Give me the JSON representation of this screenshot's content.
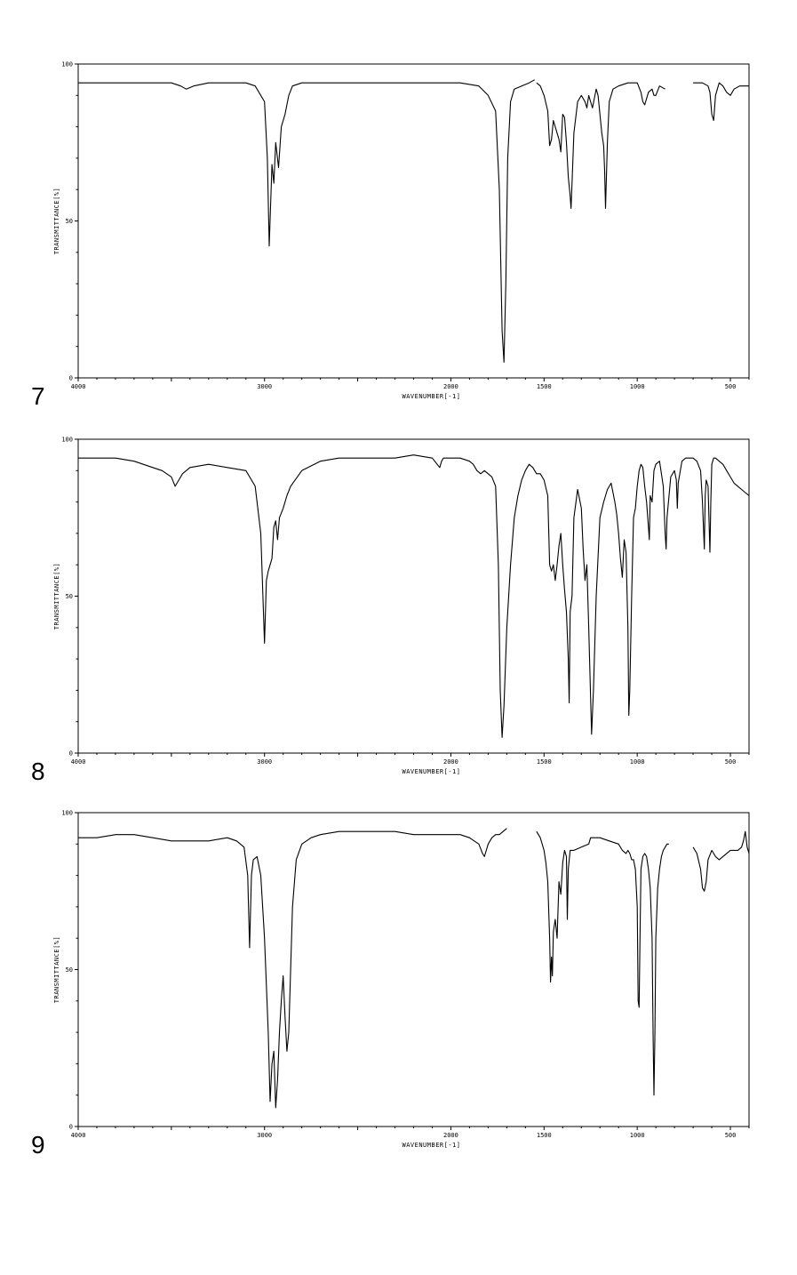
{
  "chart_data": [
    {
      "type": "line",
      "panel_label": "7",
      "xlabel": "WAVENUMBER[-1]",
      "ylabel": "TRANSMITTANCE[%]",
      "xlim": [
        4000,
        400
      ],
      "ylim": [
        0,
        100
      ],
      "x_ticks": [
        "4000",
        "3000",
        "2000",
        "1500",
        "1000",
        "500"
      ],
      "y_ticks": [
        "0",
        "50",
        "100"
      ],
      "segments": [
        {
          "x": [
            4000,
            3500,
            3450,
            3420,
            3380,
            3300,
            3100,
            3050,
            3000,
            2985,
            2975,
            2960,
            2950,
            2940,
            2925,
            2910,
            2890,
            2870,
            2850,
            2800,
            2700,
            2500,
            2300,
            2100,
            1950,
            1850,
            1800,
            1760,
            1740,
            1725,
            1715,
            1705,
            1695,
            1680,
            1660,
            1620,
            1580,
            1550
          ],
          "y": [
            94,
            94,
            93,
            92,
            93,
            94,
            94,
            93,
            88,
            70,
            42,
            68,
            62,
            75,
            67,
            80,
            84,
            90,
            93,
            94,
            94,
            94,
            94,
            94,
            94,
            93,
            90,
            85,
            60,
            15,
            5,
            30,
            70,
            88,
            92,
            93,
            94,
            95
          ]
        },
        {
          "x": [
            1540,
            1520,
            1500,
            1480,
            1470,
            1460,
            1450,
            1440,
            1430,
            1420,
            1410,
            1400,
            1390,
            1380,
            1370,
            1360,
            1355,
            1350,
            1340,
            1320,
            1300,
            1280,
            1270,
            1260,
            1250,
            1240,
            1230,
            1220,
            1210,
            1200,
            1190,
            1180,
            1175,
            1170,
            1160,
            1150,
            1130,
            1100,
            1050,
            1000,
            980,
            970,
            960,
            940,
            920,
            910,
            900,
            880,
            850
          ],
          "y": [
            94,
            93,
            90,
            85,
            74,
            76,
            82,
            80,
            78,
            76,
            72,
            84,
            83,
            75,
            64,
            58,
            54,
            62,
            78,
            88,
            90,
            88,
            86,
            90,
            88,
            86,
            89,
            92,
            90,
            84,
            78,
            74,
            66,
            54,
            75,
            88,
            92,
            93,
            94,
            94,
            91,
            88,
            87,
            91,
            92,
            90,
            90,
            93,
            92
          ]
        },
        {
          "x": [
            700,
            650,
            620,
            610,
            600,
            590,
            580,
            560,
            540,
            520,
            500,
            480,
            450,
            400
          ],
          "y": [
            94,
            94,
            93,
            91,
            84,
            82,
            90,
            94,
            93,
            91,
            90,
            92,
            93,
            93
          ]
        }
      ]
    },
    {
      "type": "line",
      "panel_label": "8",
      "xlabel": "WAVENUMBER[-1]",
      "ylabel": "TRANSMITTANCE[%]",
      "xlim": [
        4000,
        400
      ],
      "ylim": [
        0,
        100
      ],
      "x_ticks": [
        "4000",
        "3000",
        "2000",
        "1500",
        "1000",
        "500"
      ],
      "y_ticks": [
        "0",
        "50",
        "100"
      ],
      "segments": [
        {
          "x": [
            4000,
            3800,
            3700,
            3600,
            3550,
            3500,
            3480,
            3460,
            3440,
            3400,
            3300,
            3200,
            3100,
            3050,
            3020,
            3000,
            2990,
            2980,
            2970,
            2960,
            2950,
            2940,
            2930,
            2920,
            2900,
            2880,
            2860,
            2800,
            2700,
            2600,
            2500,
            2400,
            2300,
            2200,
            2100,
            2060,
            2050,
            2040,
            2000,
            1950,
            1900,
            1880,
            1860,
            1840,
            1820,
            1800,
            1780,
            1760,
            1745,
            1735,
            1725,
            1715,
            1700,
            1680,
            1660,
            1640,
            1620,
            1600,
            1580,
            1560,
            1540,
            1520,
            1500,
            1480,
            1470,
            1460,
            1450,
            1440,
            1430,
            1420,
            1410,
            1400,
            1390,
            1380,
            1370,
            1365,
            1360,
            1350,
            1340,
            1320,
            1300,
            1290,
            1280,
            1270,
            1260,
            1245,
            1235,
            1220,
            1200,
            1180,
            1160,
            1140,
            1120,
            1110,
            1100,
            1090,
            1080,
            1070,
            1060,
            1050,
            1045,
            1040,
            1030,
            1020,
            1010,
            1000,
            990,
            980,
            970,
            960,
            950,
            940,
            935,
            930,
            920,
            910,
            900,
            880,
            860,
            850,
            845,
            840,
            820,
            800,
            790,
            785,
            780,
            760,
            740,
            720,
            700,
            680,
            660,
            650,
            640,
            635,
            630,
            620,
            610,
            605,
            600,
            590,
            580,
            560,
            540,
            520,
            500,
            480,
            460,
            440,
            420,
            400
          ],
          "y": [
            94,
            94,
            93,
            91,
            90,
            88,
            85,
            87,
            89,
            91,
            92,
            91,
            90,
            85,
            70,
            35,
            55,
            58,
            60,
            62,
            72,
            74,
            68,
            75,
            78,
            82,
            85,
            90,
            93,
            94,
            94,
            94,
            94,
            95,
            94,
            91,
            93,
            94,
            94,
            94,
            93,
            92,
            90,
            89,
            90,
            89,
            88,
            85,
            60,
            20,
            5,
            15,
            40,
            60,
            75,
            82,
            87,
            90,
            92,
            91,
            89,
            89,
            87,
            82,
            60,
            58,
            60,
            55,
            60,
            66,
            70,
            60,
            52,
            45,
            30,
            16,
            45,
            50,
            75,
            84,
            78,
            65,
            55,
            60,
            40,
            6,
            20,
            50,
            75,
            80,
            84,
            86,
            80,
            76,
            70,
            62,
            56,
            68,
            64,
            40,
            12,
            20,
            50,
            75,
            78,
            85,
            90,
            92,
            91,
            85,
            80,
            72,
            68,
            82,
            80,
            90,
            92,
            93,
            85,
            70,
            65,
            75,
            88,
            90,
            87,
            78,
            86,
            93,
            94,
            94,
            94,
            93,
            90,
            80,
            65,
            82,
            87,
            85,
            64,
            80,
            92,
            94,
            94,
            93,
            92,
            90,
            88,
            86,
            85,
            84,
            83,
            82
          ]
        }
      ]
    },
    {
      "type": "line",
      "panel_label": "9",
      "xlabel": "WAVENUMBER[-1]",
      "ylabel": "TRANSMITTANCE[%]",
      "xlim": [
        4000,
        400
      ],
      "ylim": [
        0,
        100
      ],
      "x_ticks": [
        "4000",
        "3000",
        "2000",
        "1500",
        "1000",
        "500"
      ],
      "y_ticks": [
        "0",
        "50",
        "100"
      ],
      "segments": [
        {
          "x": [
            4000,
            3900,
            3800,
            3700,
            3600,
            3500,
            3400,
            3300,
            3200,
            3150,
            3110,
            3090,
            3080,
            3070,
            3060,
            3040,
            3020,
            3000,
            2980,
            2970,
            2960,
            2950,
            2940,
            2930,
            2920,
            2910,
            2900,
            2890,
            2880,
            2870,
            2860,
            2850,
            2830,
            2800,
            2750,
            2700,
            2600,
            2500,
            2400,
            2300,
            2200,
            2100,
            2000,
            1950,
            1900,
            1850,
            1830,
            1820,
            1810,
            1800,
            1780,
            1760,
            1740,
            1720,
            1700
          ],
          "y": [
            92,
            92,
            93,
            93,
            92,
            91,
            91,
            91,
            92,
            91,
            89,
            80,
            57,
            80,
            85,
            86,
            80,
            60,
            30,
            8,
            20,
            24,
            6,
            15,
            30,
            40,
            48,
            35,
            24,
            30,
            50,
            70,
            85,
            90,
            92,
            93,
            94,
            94,
            94,
            94,
            93,
            93,
            93,
            93,
            92,
            90,
            87,
            86,
            88,
            90,
            92,
            93,
            93,
            94,
            95
          ]
        },
        {
          "x": [
            1540,
            1520,
            1500,
            1490,
            1480,
            1470,
            1465,
            1460,
            1455,
            1450,
            1440,
            1430,
            1420,
            1410,
            1400,
            1390,
            1380,
            1375,
            1370,
            1360,
            1340,
            1300,
            1260,
            1250,
            1200,
            1150,
            1100,
            1080,
            1060,
            1050,
            1040,
            1030,
            1020,
            1010,
            1000,
            995,
            990,
            985,
            980,
            970,
            960,
            950,
            940,
            930,
            920,
            915,
            910,
            905,
            900,
            890,
            880,
            870,
            860,
            850,
            840,
            830
          ],
          "y": [
            94,
            92,
            88,
            84,
            78,
            60,
            46,
            54,
            48,
            62,
            66,
            60,
            78,
            74,
            84,
            88,
            86,
            66,
            82,
            88,
            88,
            89,
            90,
            92,
            92,
            91,
            90,
            88,
            87,
            88,
            87,
            85,
            85,
            82,
            70,
            40,
            38,
            60,
            82,
            86,
            87,
            86,
            82,
            76,
            60,
            30,
            10,
            30,
            60,
            76,
            82,
            86,
            88,
            89,
            90,
            90
          ]
        },
        {
          "x": [
            700,
            680,
            660,
            650,
            640,
            630,
            620,
            600,
            580,
            560,
            540,
            520,
            500,
            480,
            460,
            440,
            430,
            420,
            410,
            400
          ],
          "y": [
            89,
            87,
            82,
            76,
            75,
            78,
            85,
            88,
            86,
            85,
            86,
            87,
            88,
            88,
            88,
            89,
            91,
            94,
            89,
            87
          ]
        }
      ]
    }
  ]
}
